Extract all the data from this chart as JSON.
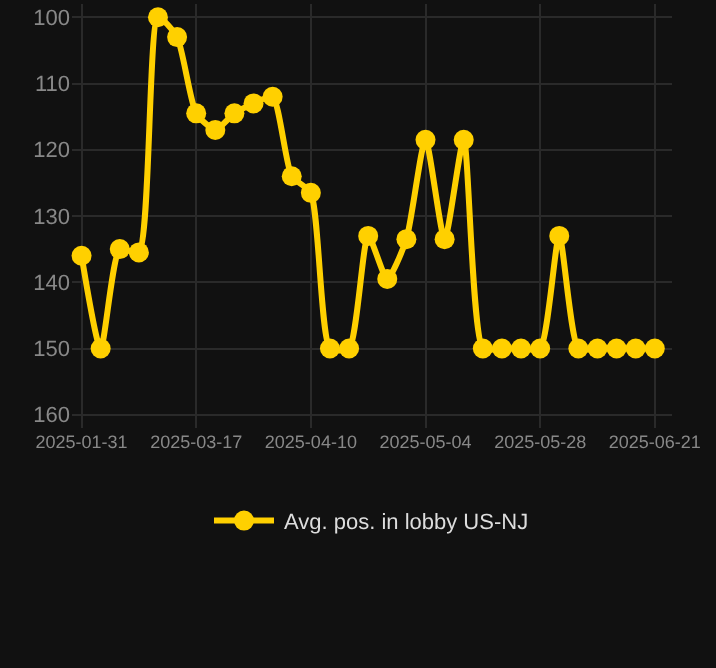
{
  "chart_data": {
    "type": "line",
    "categories": [
      "2025-01-31",
      null,
      null,
      null,
      null,
      null,
      "2025-03-17",
      null,
      null,
      null,
      null,
      null,
      "2025-04-10",
      null,
      null,
      null,
      null,
      null,
      "2025-05-04",
      null,
      null,
      null,
      null,
      null,
      "2025-05-28",
      null,
      null,
      null,
      null,
      null,
      "2025-06-21"
    ],
    "series": [
      {
        "name": "Avg. pos. in lobby US-NJ",
        "color": "#ffd000",
        "values": [
          136,
          150,
          135,
          135.5,
          100,
          103,
          114.5,
          117,
          114.5,
          113,
          112,
          124,
          126.5,
          150,
          150,
          133,
          139.5,
          133.5,
          118.5,
          133.5,
          118.5,
          150,
          150,
          150,
          150,
          133,
          150,
          150,
          150,
          150,
          150
        ]
      }
    ],
    "ylim": [
      162,
      98
    ],
    "yticks": [
      100,
      110,
      120,
      130,
      140,
      150,
      160
    ],
    "grid": true,
    "legend": "bottom",
    "marker": "circle",
    "line_style": "solid"
  }
}
